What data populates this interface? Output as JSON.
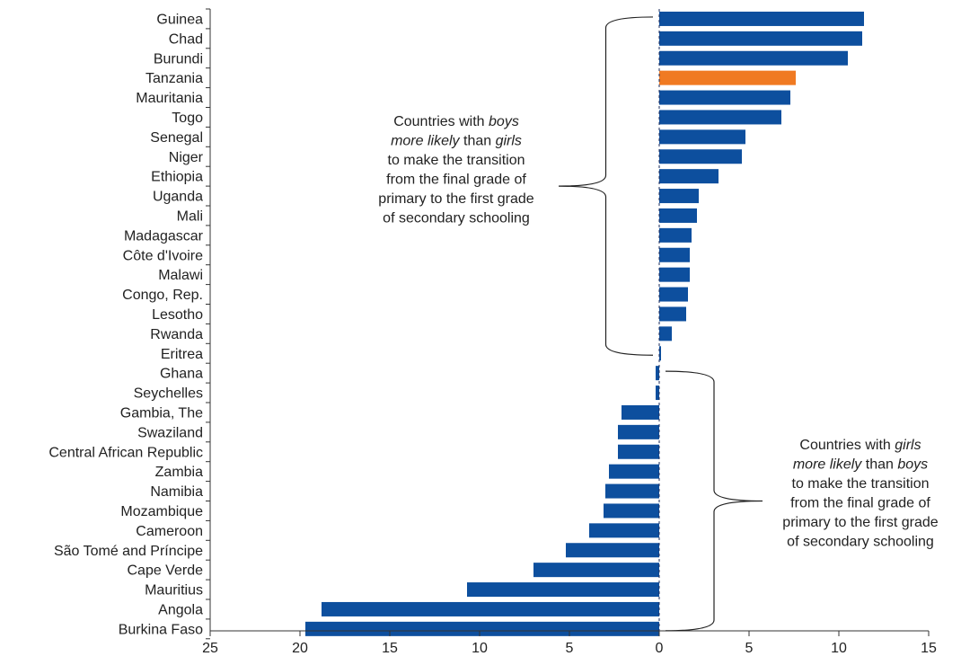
{
  "chart_data": {
    "type": "bar",
    "orientation": "horizontal",
    "categories": [
      "Guinea",
      "Chad",
      "Burundi",
      "Tanzania",
      "Mauritania",
      "Togo",
      "Senegal",
      "Niger",
      "Ethiopia",
      "Uganda",
      "Mali",
      "Madagascar",
      "Côte d'Ivoire",
      "Malawi",
      "Congo, Rep.",
      "Lesotho",
      "Rwanda",
      "Eritrea",
      "Ghana",
      "Seychelles",
      "Gambia, The",
      "Swaziland",
      "Central African Republic",
      "Zambia",
      "Namibia",
      "Mozambique",
      "Cameroon",
      "São Tomé and Príncipe",
      "Cape Verde",
      "Mauritius",
      "Angola",
      "Burkina Faso"
    ],
    "values": [
      11.4,
      11.3,
      10.5,
      7.6,
      7.3,
      6.8,
      4.8,
      4.6,
      3.3,
      2.2,
      2.1,
      1.8,
      1.7,
      1.7,
      1.6,
      1.5,
      0.7,
      0.1,
      -0.2,
      -0.2,
      -2.1,
      -2.3,
      -2.3,
      -2.8,
      -3.0,
      -3.1,
      -3.9,
      -5.2,
      -7.0,
      -10.7,
      -18.8,
      -19.7
    ],
    "highlight": "Tanzania",
    "xlim": [
      -25,
      15
    ],
    "xticks": [
      {
        "value": -25,
        "label": "25"
      },
      {
        "value": -20,
        "label": "20"
      },
      {
        "value": -15,
        "label": "15"
      },
      {
        "value": -10,
        "label": "10"
      },
      {
        "value": -5,
        "label": "5"
      },
      {
        "value": 0,
        "label": "0"
      },
      {
        "value": 5,
        "label": "5"
      },
      {
        "value": 10,
        "label": "10"
      },
      {
        "value": 15,
        "label": "15"
      }
    ],
    "xlabel": "",
    "ylabel": "",
    "grid": false,
    "colors": {
      "bar": "#0d4f9e",
      "highlight": "#f07a22",
      "axis": "#333333",
      "text": "#222222"
    },
    "annotations": [
      {
        "id": "boys",
        "from": "Guinea",
        "to": "Eritrea",
        "lines": [
          [
            {
              "t": "Countries with "
            },
            {
              "t": "boys",
              "i": true
            }
          ],
          [
            {
              "t": "more likely",
              "i": true
            },
            {
              "t": " than "
            },
            {
              "t": "girls",
              "i": true
            }
          ],
          [
            {
              "t": "to make the transition"
            }
          ],
          [
            {
              "t": "from the final grade of"
            }
          ],
          [
            {
              "t": "primary to the first grade"
            }
          ],
          [
            {
              "t": "of secondary schooling"
            }
          ]
        ]
      },
      {
        "id": "girls",
        "from": "Ghana",
        "to": "Burkina Faso",
        "lines": [
          [
            {
              "t": "Countries with "
            },
            {
              "t": "girls",
              "i": true
            }
          ],
          [
            {
              "t": "more likely",
              "i": true
            },
            {
              "t": " than "
            },
            {
              "t": "boys",
              "i": true
            }
          ],
          [
            {
              "t": "to make the transition"
            }
          ],
          [
            {
              "t": "from the final grade of"
            }
          ],
          [
            {
              "t": "primary to the first grade"
            }
          ],
          [
            {
              "t": "of secondary schooling"
            }
          ]
        ]
      }
    ]
  }
}
